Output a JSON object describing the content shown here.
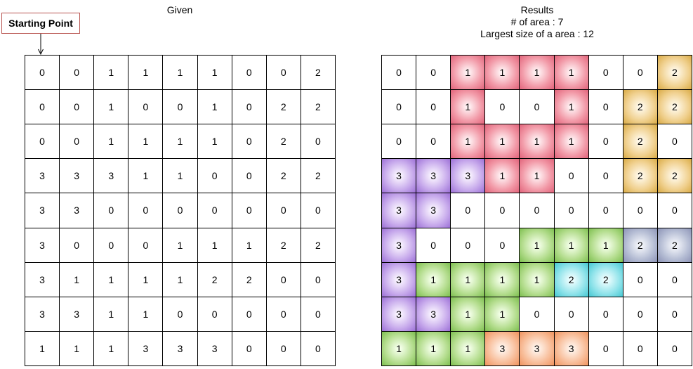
{
  "given_title": "Given",
  "results": {
    "title": "Results",
    "area_count_label": "# of area : 7",
    "largest_size_label": "Largest size of  a area : 12"
  },
  "starting_point_label": "Starting Point",
  "colors": {
    "red": "#e1637a",
    "yellow": "#d9aa45",
    "purple": "#9c70d6",
    "green": "#7dbf4f",
    "slate": "#8c93b6",
    "cyan": "#46c8d2",
    "orange": "#f0935e"
  },
  "given_grid": [
    [
      "0",
      "0",
      "1",
      "1",
      "1",
      "1",
      "0",
      "0",
      "2"
    ],
    [
      "0",
      "0",
      "1",
      "0",
      "0",
      "1",
      "0",
      "2",
      "2"
    ],
    [
      "0",
      "0",
      "1",
      "1",
      "1",
      "1",
      "0",
      "2",
      "0"
    ],
    [
      "3",
      "3",
      "3",
      "1",
      "1",
      "0",
      "0",
      "2",
      "2"
    ],
    [
      "3",
      "3",
      "0",
      "0",
      "0",
      "0",
      "0",
      "0",
      "0"
    ],
    [
      "3",
      "0",
      "0",
      "0",
      "1",
      "1",
      "1",
      "2",
      "2"
    ],
    [
      "3",
      "1",
      "1",
      "1",
      "1",
      "2",
      "2",
      "0",
      "0"
    ],
    [
      "3",
      "3",
      "1",
      "1",
      "0",
      "0",
      "0",
      "0",
      "0"
    ],
    [
      "1",
      "1",
      "1",
      "3",
      "3",
      "3",
      "0",
      "0",
      "0"
    ]
  ],
  "result_grid": [
    [
      "0",
      "0",
      "1",
      "1",
      "1",
      "1",
      "0",
      "0",
      "2"
    ],
    [
      "0",
      "0",
      "1",
      "0",
      "0",
      "1",
      "0",
      "2",
      "2"
    ],
    [
      "0",
      "0",
      "1",
      "1",
      "1",
      "1",
      "0",
      "2",
      "0"
    ],
    [
      "3",
      "3",
      "3",
      "1",
      "1",
      "0",
      "0",
      "2",
      "2"
    ],
    [
      "3",
      "3",
      "0",
      "0",
      "0",
      "0",
      "0",
      "0",
      "0"
    ],
    [
      "3",
      "0",
      "0",
      "0",
      "1",
      "1",
      "1",
      "2",
      "2"
    ],
    [
      "3",
      "1",
      "1",
      "1",
      "1",
      "2",
      "2",
      "0",
      "0"
    ],
    [
      "3",
      "3",
      "1",
      "1",
      "0",
      "0",
      "0",
      "0",
      "0"
    ],
    [
      "1",
      "1",
      "1",
      "3",
      "3",
      "3",
      "0",
      "0",
      "0"
    ]
  ],
  "result_area_colors": [
    [
      "",
      "",
      "red",
      "red",
      "red",
      "red",
      "",
      "",
      "yellow"
    ],
    [
      "",
      "",
      "red",
      "",
      "",
      "red",
      "",
      "yellow",
      "yellow"
    ],
    [
      "",
      "",
      "red",
      "red",
      "red",
      "red",
      "",
      "yellow",
      ""
    ],
    [
      "purple",
      "purple",
      "purple",
      "red",
      "red",
      "",
      "",
      "yellow",
      "yellow"
    ],
    [
      "purple",
      "purple",
      "",
      "",
      "",
      "",
      "",
      "",
      ""
    ],
    [
      "purple",
      "",
      "",
      "",
      "green",
      "green",
      "green",
      "slate",
      "slate"
    ],
    [
      "purple",
      "green",
      "green",
      "green",
      "green",
      "cyan",
      "cyan",
      "",
      ""
    ],
    [
      "purple",
      "purple",
      "green",
      "green",
      "",
      "",
      "",
      "",
      ""
    ],
    [
      "green",
      "green",
      "green",
      "orange",
      "orange",
      "orange",
      "",
      "",
      ""
    ]
  ]
}
